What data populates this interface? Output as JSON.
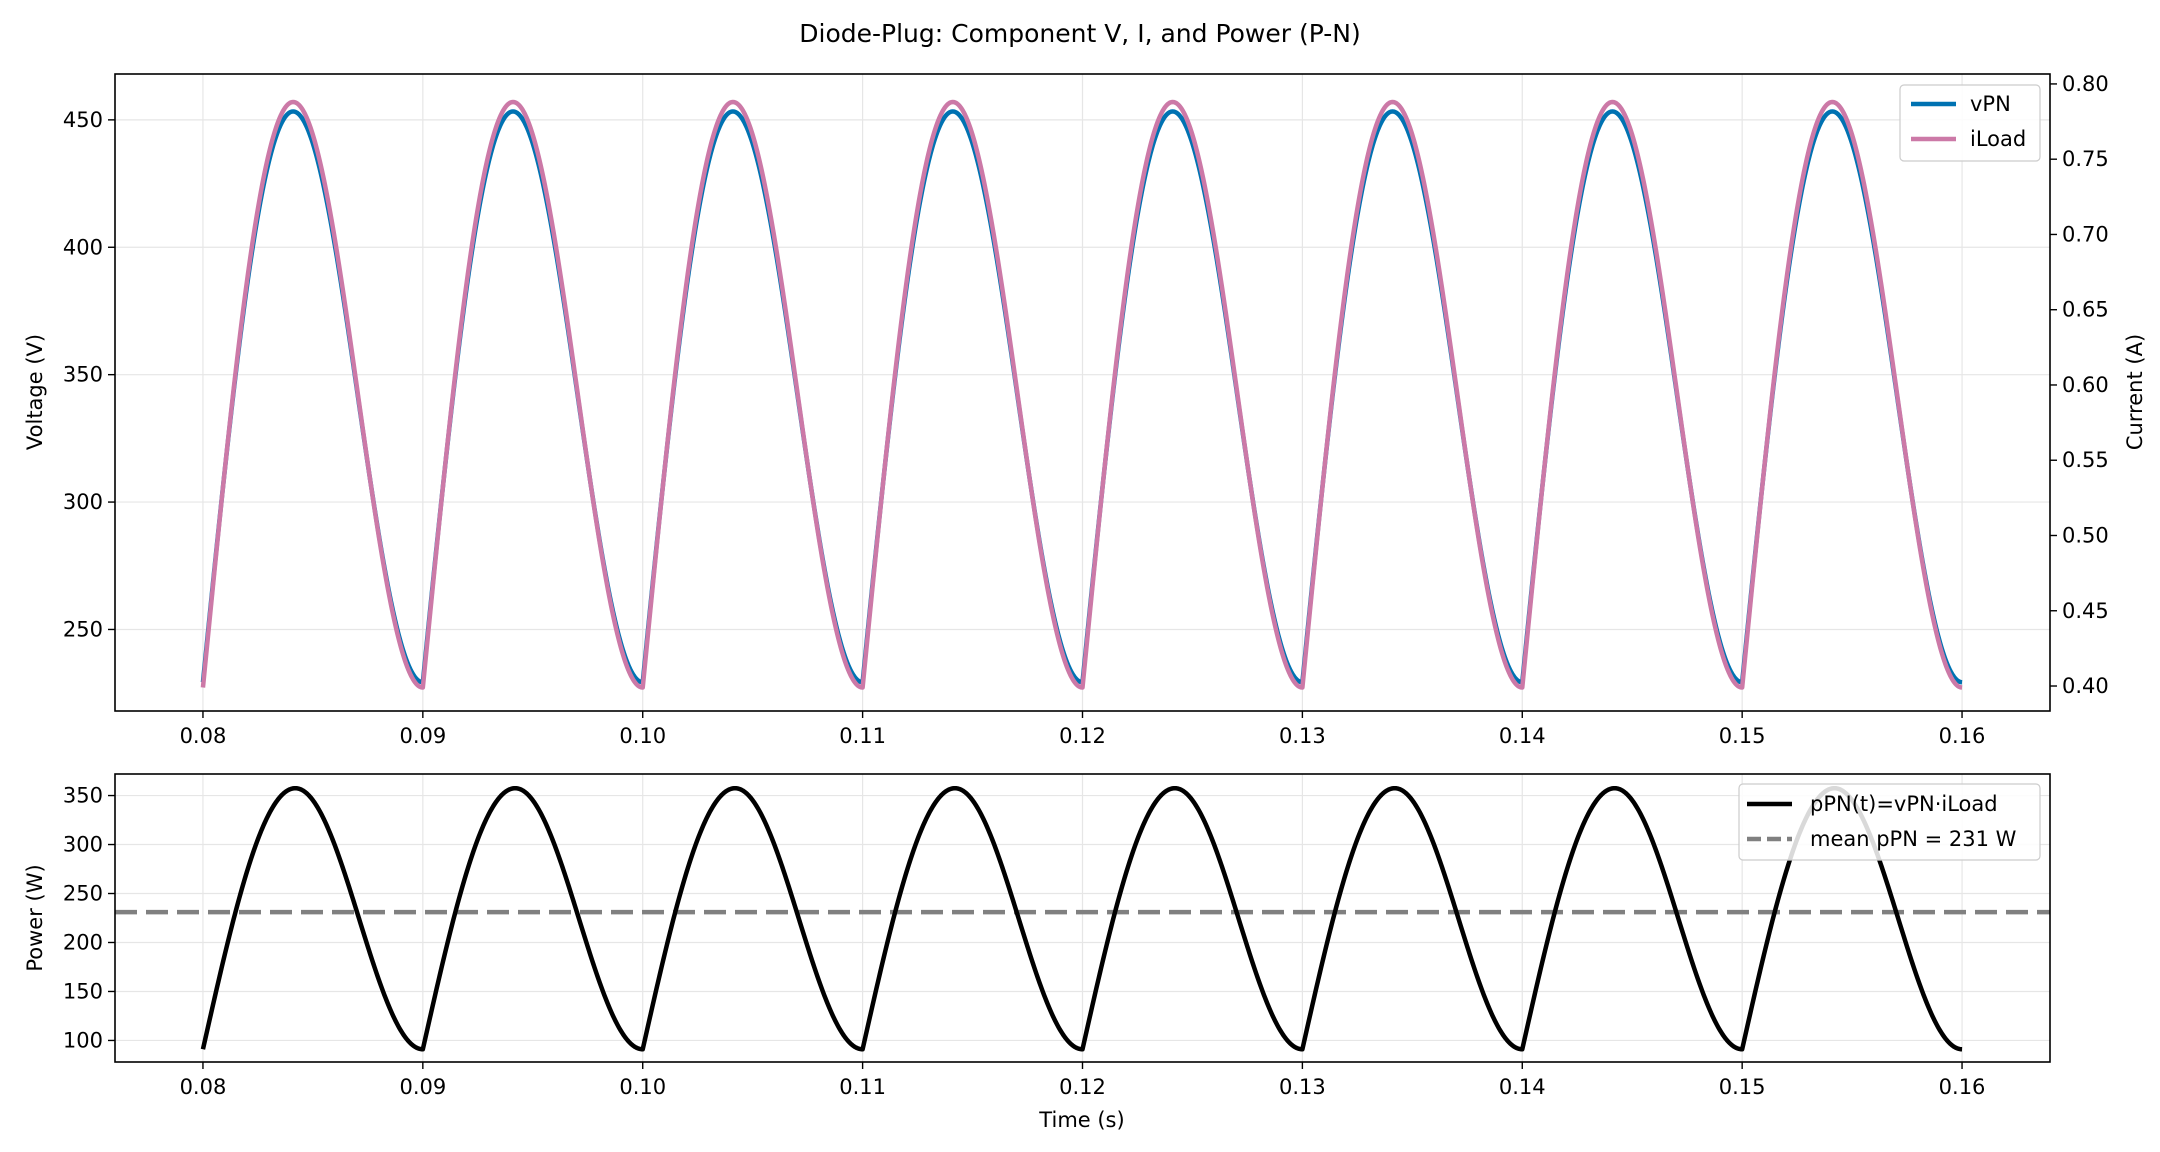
{
  "title": "Diode-Plug: Component V, I, and Power (P-N)",
  "colors": {
    "vPN": "#0072b2",
    "iLoad": "#cc79a7",
    "power": "#000000",
    "mean": "#808080",
    "grid": "#e6e6e6"
  },
  "chart_data": [
    {
      "type": "line",
      "title": "Diode-Plug: Component V, I, and Power (P-N)",
      "xlabel": "",
      "ylabel": "Voltage (V)",
      "y2label": "Current (A)",
      "xlim": [
        0.076,
        0.164
      ],
      "ylim": [
        218,
        468
      ],
      "y2lim": [
        0.3834,
        0.8066
      ],
      "xticks": [
        0.08,
        0.09,
        0.1,
        0.11,
        0.12,
        0.13,
        0.14,
        0.15,
        0.16
      ],
      "xtick_labels": [
        "0.08",
        "0.09",
        "0.10",
        "0.11",
        "0.12",
        "0.13",
        "0.14",
        "0.15",
        "0.16"
      ],
      "yticks": [
        250,
        300,
        350,
        400,
        450
      ],
      "ytick_labels": [
        "250",
        "300",
        "350",
        "400",
        "450"
      ],
      "y2ticks": [
        0.4,
        0.45,
        0.5,
        0.55,
        0.6,
        0.65,
        0.7,
        0.75,
        0.8
      ],
      "y2tick_labels": [
        "0.40",
        "0.45",
        "0.50",
        "0.55",
        "0.60",
        "0.65",
        "0.70",
        "0.75",
        "0.80"
      ],
      "grid": true,
      "legend": "top-right",
      "waveform": {
        "t_start": 0.08,
        "t_end": 0.16,
        "period": 0.01,
        "peak_time_in_period": 0.0041,
        "min_value": 229.3,
        "peak_value": 453.3
      },
      "series": [
        {
          "name": "vPN",
          "axis": "left",
          "unit": "V",
          "min": 229.3,
          "max": 453.3
        },
        {
          "name": "iLoad",
          "axis": "right",
          "unit": "A",
          "min": 0.399,
          "max": 0.788
        }
      ]
    },
    {
      "type": "line",
      "xlabel": "Time (s)",
      "ylabel": "Power (W)",
      "xlim": [
        0.076,
        0.164
      ],
      "ylim": [
        78,
        372
      ],
      "xticks": [
        0.08,
        0.09,
        0.1,
        0.11,
        0.12,
        0.13,
        0.14,
        0.15,
        0.16
      ],
      "xtick_labels": [
        "0.08",
        "0.09",
        "0.10",
        "0.11",
        "0.12",
        "0.13",
        "0.14",
        "0.15",
        "0.16"
      ],
      "yticks": [
        100,
        150,
        200,
        250,
        300,
        350
      ],
      "ytick_labels": [
        "100",
        "150",
        "200",
        "250",
        "300",
        "350"
      ],
      "grid": true,
      "legend": "top-right",
      "waveform": {
        "t_start": 0.08,
        "t_end": 0.16,
        "period": 0.01,
        "peak_time_in_period": 0.0042,
        "min_value": 91.0,
        "peak_value": 357.5
      },
      "series": [
        {
          "name": "pPN(t)=vPN·iLoad",
          "unit": "W",
          "min": 91.0,
          "max": 357.5
        },
        {
          "name": "mean pPN = 231 W",
          "value": 231,
          "style": "dashed"
        }
      ]
    }
  ]
}
